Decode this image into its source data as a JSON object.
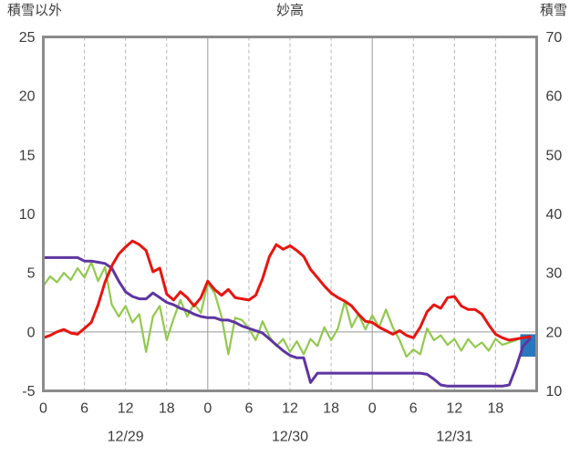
{
  "header": {
    "left_label": "積雪以外",
    "title": "妙高",
    "right_label": "積雪"
  },
  "colors": {
    "background": "#ffffff",
    "text": "#3c3c3c",
    "frame": "#8c8c8c",
    "grid_solid": "#999999",
    "grid_dashed": "#b5b5b5"
  },
  "chart_data": {
    "type": "line",
    "title": "妙高",
    "left_axis": {
      "label": "積雪以外",
      "min": -5,
      "max": 25,
      "ticks": [
        -5,
        0,
        5,
        10,
        15,
        20,
        25
      ]
    },
    "right_axis": {
      "label": "積雪",
      "min": 10,
      "max": 70,
      "ticks": [
        10,
        20,
        30,
        40,
        50,
        60,
        70
      ]
    },
    "x_axis": {
      "days": [
        "12/29",
        "12/30",
        "12/31"
      ],
      "hour_ticks": [
        0,
        6,
        12,
        18
      ],
      "minor_grid_hours": [
        6,
        12,
        18
      ],
      "total_hours": 72
    },
    "grid_note": "vertical dashed gridlines at 6/12/18 each day, solid vertical lines at day boundaries, horizontal solid line at 0 on left axis",
    "series": [
      {
        "id": "green",
        "name": "green-line",
        "color": "#92c94e",
        "width": 2.2,
        "values": [
          3.9,
          4.7,
          4.2,
          5,
          4.4,
          5.4,
          4.6,
          5.9,
          4.3,
          5.5,
          2.3,
          1.3,
          2.2,
          0.8,
          1.5,
          -1.7,
          1.3,
          2.2,
          -0.7,
          1.1,
          2.7,
          1.3,
          2.4,
          1.6,
          4.1,
          3.3,
          1.3,
          -1.9,
          1.2,
          1,
          0.3,
          -0.7,
          0.9,
          -0.4,
          -1.2,
          -0.6,
          -1.7,
          -0.8,
          -1.9,
          -0.6,
          -1.2,
          0.4,
          -0.7,
          0.3,
          2.6,
          0.4,
          1.5,
          0.2,
          1.4,
          0.4,
          1.9,
          0.4,
          -0.7,
          -2.1,
          -1.5,
          -1.9,
          0.3,
          -0.7,
          -0.3,
          -1.1,
          -0.6,
          -1.6,
          -0.6,
          -1.3,
          -0.9,
          -1.6,
          -0.6,
          -1.1,
          -0.9,
          -0.7,
          -0.4,
          -0.3
        ]
      },
      {
        "id": "purple",
        "name": "purple-line",
        "color": "#5e35a1",
        "width": 3,
        "values": [
          6.3,
          6.3,
          6.3,
          6.3,
          6.3,
          6.3,
          6,
          6,
          5.9,
          5.8,
          5.4,
          4.3,
          3.4,
          3,
          2.8,
          2.8,
          3.3,
          2.9,
          2.5,
          2.3,
          2,
          1.8,
          1.5,
          1.3,
          1.2,
          1.2,
          1,
          1,
          0.8,
          0.5,
          0.3,
          0.1,
          -0.1,
          -0.6,
          -1.1,
          -1.6,
          -2,
          -2.2,
          -2.2,
          -4.3,
          -3.5,
          -3.5,
          -3.5,
          -3.5,
          -3.5,
          -3.5,
          -3.5,
          -3.5,
          -3.5,
          -3.5,
          -3.5,
          -3.5,
          -3.5,
          -3.5,
          -3.5,
          -3.5,
          -3.6,
          -4,
          -4.5,
          -4.6,
          -4.6,
          -4.6,
          -4.6,
          -4.6,
          -4.6,
          -4.6,
          -4.6,
          -4.6,
          -4.5,
          -3,
          -1.2,
          -0.6
        ]
      },
      {
        "id": "red",
        "name": "red-line",
        "color": "#e8140f",
        "width": 3,
        "values": [
          -0.5,
          -0.3,
          0,
          0.2,
          -0.1,
          -0.2,
          0.3,
          0.8,
          2.3,
          4.2,
          5.6,
          6.6,
          7.2,
          7.7,
          7.4,
          6.9,
          5.1,
          5.4,
          3.2,
          2.7,
          3.4,
          2.9,
          2.2,
          2.9,
          4.3,
          3.6,
          3.1,
          3.6,
          2.9,
          2.8,
          2.7,
          3.1,
          4.5,
          6.4,
          7.4,
          7,
          7.3,
          6.9,
          6.4,
          5.3,
          4.6,
          3.9,
          3.3,
          2.9,
          2.6,
          2.2,
          1.5,
          0.9,
          0.8,
          0.4,
          0.1,
          -0.2,
          0.1,
          -0.3,
          -0.5,
          0.4,
          1.7,
          2.3,
          2,
          2.9,
          3,
          2.2,
          1.9,
          1.9,
          1.5,
          0.6,
          -0.2,
          -0.5,
          -0.7,
          -0.6,
          -0.5,
          -0.4
        ]
      }
    ],
    "marker": {
      "id": "blue",
      "name": "blue-marker",
      "color": "#2878be",
      "x_start_hour": 69.6,
      "x_end_hour": 71.8,
      "value_top": -0.2,
      "value_bottom": -2.1
    }
  }
}
